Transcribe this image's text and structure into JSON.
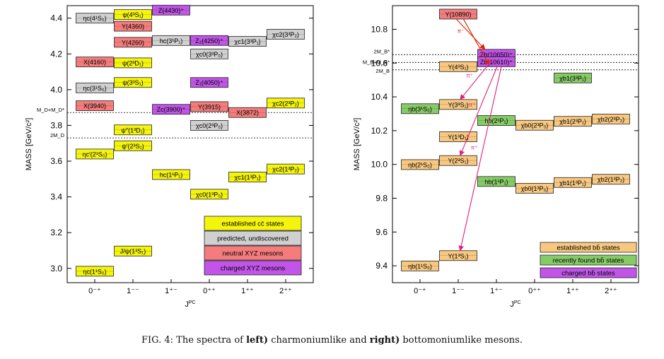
{
  "colors": {
    "established": "#f5f50c",
    "predicted": "#d0d0d0",
    "neutral": "#f47c7c",
    "charged": "#c055e8",
    "b_established": "#f8c880",
    "b_recent": "#86cc66",
    "b_charged": "#c055e8",
    "arrow_red": "#dd2200",
    "arrow_pink": "#e0207a"
  },
  "caption": {
    "prefix": "FIG. 4: The spectra of ",
    "bold1": "left)",
    "mid": " charmoniumlike and ",
    "bold2": "right)",
    "suffix": " bottomoniumlike mesons."
  },
  "chart_data": [
    {
      "type": "level-diagram",
      "ylabel": "MASS  [GeV/c²]",
      "xlabel": "J^PC",
      "ylim": [
        2.92,
        4.47
      ],
      "yticks": [
        3.0,
        3.2,
        3.4,
        3.6,
        3.8,
        4.0,
        4.2,
        4.4
      ],
      "tick_decimals": 1,
      "categories": [
        "0⁻⁺",
        "1⁻⁻",
        "1⁺⁻",
        "0⁺⁺",
        "1⁺⁺",
        "2⁺⁺"
      ],
      "thresholds": [
        {
          "label": "M_D+M_D*",
          "mass": 3.872
        },
        {
          "label": "2M_D",
          "mass": 3.73
        }
      ],
      "states": [
        {
          "label": "ηc(4¹S₀)",
          "col": 0,
          "mass": 4.4,
          "kind": "predicted"
        },
        {
          "label": "ψ(4³S₁)",
          "col": 1,
          "mass": 4.42,
          "kind": "established"
        },
        {
          "label": "Z(4430)⁺",
          "col": 2,
          "mass": 4.445,
          "kind": "charged"
        },
        {
          "label": "Y(4360)",
          "col": 1,
          "mass": 4.355,
          "kind": "neutral"
        },
        {
          "label": "Y(4260)",
          "col": 1,
          "mass": 4.265,
          "kind": "neutral"
        },
        {
          "label": "hc(3¹P₁)",
          "col": 2,
          "mass": 4.275,
          "kind": "predicted"
        },
        {
          "label": "Z₂(4250)⁺",
          "col": 3,
          "mass": 4.275,
          "kind": "charged"
        },
        {
          "label": "χc1(3³P₁)",
          "col": 4,
          "mass": 4.27,
          "kind": "predicted"
        },
        {
          "label": "χc2(3³P₂)",
          "col": 5,
          "mass": 4.31,
          "kind": "predicted"
        },
        {
          "label": "χc0(3³P₀)",
          "col": 3,
          "mass": 4.2,
          "kind": "predicted"
        },
        {
          "label": "X(4160)",
          "col": 0,
          "mass": 4.155,
          "kind": "neutral"
        },
        {
          "label": "ψ(2³D₁)",
          "col": 1,
          "mass": 4.15,
          "kind": "established"
        },
        {
          "label": "ηc(3¹S₀)",
          "col": 0,
          "mass": 4.01,
          "kind": "predicted"
        },
        {
          "label": "ψ(3³S₁)",
          "col": 1,
          "mass": 4.04,
          "kind": "established"
        },
        {
          "label": "Z₁(4050)⁺",
          "col": 3,
          "mass": 4.04,
          "kind": "charged"
        },
        {
          "label": "X(3940)",
          "col": 0,
          "mass": 3.91,
          "kind": "neutral"
        },
        {
          "label": "Zc(3900)⁺",
          "col": 2,
          "mass": 3.89,
          "kind": "charged"
        },
        {
          "label": "Y(3915)",
          "col": 3,
          "mass": 3.905,
          "kind": "neutral"
        },
        {
          "label": "X(3872)",
          "col": 4,
          "mass": 3.872,
          "kind": "neutral"
        },
        {
          "label": "χc2(2³P₂)",
          "col": 5,
          "mass": 3.925,
          "kind": "established"
        },
        {
          "label": "ψ′′(1³D₁)",
          "col": 1,
          "mass": 3.775,
          "kind": "established"
        },
        {
          "label": "χc0(2³P₀)",
          "col": 3,
          "mass": 3.8,
          "kind": "predicted"
        },
        {
          "label": "ψ′(2³S₁)",
          "col": 1,
          "mass": 3.686,
          "kind": "established"
        },
        {
          "label": "ηc′(2¹S₀)",
          "col": 0,
          "mass": 3.64,
          "kind": "established"
        },
        {
          "label": "hc(1¹P₁)",
          "col": 2,
          "mass": 3.525,
          "kind": "established"
        },
        {
          "label": "χc1(1³P₁)",
          "col": 4,
          "mass": 3.511,
          "kind": "established"
        },
        {
          "label": "χc2(1³P₂)",
          "col": 5,
          "mass": 3.556,
          "kind": "established"
        },
        {
          "label": "χc0(1³P₀)",
          "col": 3,
          "mass": 3.415,
          "kind": "established"
        },
        {
          "label": "J/ψ(1³S₁)",
          "col": 1,
          "mass": 3.097,
          "kind": "established"
        },
        {
          "label": "ηc(1¹S₀)",
          "col": 0,
          "mass": 2.984,
          "kind": "established"
        }
      ],
      "legend": [
        {
          "label": "established cc̄ states",
          "kind": "established"
        },
        {
          "label": "predicted, undiscovered",
          "kind": "predicted"
        },
        {
          "label": "neutral XYZ mesons",
          "kind": "neutral"
        },
        {
          "label": "charged XYZ mesons",
          "kind": "charged"
        }
      ]
    },
    {
      "type": "level-diagram",
      "ylabel": "MASS  [GeV/c²]",
      "xlabel": "J^PC",
      "ylim": [
        9.3,
        10.94
      ],
      "yticks": [
        9.4,
        9.6,
        9.8,
        10.0,
        10.2,
        10.4,
        10.6,
        10.8
      ],
      "tick_decimals": 1,
      "categories": [
        "0⁻⁺",
        "1⁻⁻",
        "1⁺⁻",
        "0⁺⁺",
        "1⁺⁺",
        "2⁺⁺"
      ],
      "thresholds": [
        {
          "label": "2M_B*",
          "mass": 10.65
        },
        {
          "label": "M_B+M_B*",
          "mass": 10.604
        },
        {
          "label": "2M_B",
          "mass": 10.56
        }
      ],
      "states": [
        {
          "label": "Υ(10890)",
          "col": 1,
          "mass": 10.89,
          "kind": "neutral"
        },
        {
          "label": "Zb(10650)⁺",
          "col": 2,
          "mass": 10.652,
          "kind": "charged"
        },
        {
          "label": "Zb(10610)⁺",
          "col": 2,
          "mass": 10.608,
          "kind": "charged"
        },
        {
          "label": "Υ(4³S₁)",
          "col": 1,
          "mass": 10.579,
          "kind": "b_established"
        },
        {
          "label": "χb1(3³P₁)",
          "col": 4,
          "mass": 10.512,
          "kind": "b_recent"
        },
        {
          "label": "Υ(3³S₁)",
          "col": 1,
          "mass": 10.355,
          "kind": "b_established"
        },
        {
          "label": "ηb(3¹S₀)",
          "col": 0,
          "mass": 10.33,
          "kind": "b_recent"
        },
        {
          "label": "hb(2¹P₁)",
          "col": 2,
          "mass": 10.26,
          "kind": "b_recent"
        },
        {
          "label": "χb0(2³P₀)",
          "col": 3,
          "mass": 10.232,
          "kind": "b_established"
        },
        {
          "label": "χb1(2³P₁)",
          "col": 4,
          "mass": 10.255,
          "kind": "b_established"
        },
        {
          "label": "χb2(2³P₂)",
          "col": 5,
          "mass": 10.269,
          "kind": "b_established"
        },
        {
          "label": "Υ(1³D₁)",
          "col": 1,
          "mass": 10.164,
          "kind": "b_established"
        },
        {
          "label": "Υ(2³S₁)",
          "col": 1,
          "mass": 10.023,
          "kind": "b_established"
        },
        {
          "label": "ηb(2¹S₀)",
          "col": 0,
          "mass": 9.999,
          "kind": "b_established"
        },
        {
          "label": "hb(1¹P₁)",
          "col": 2,
          "mass": 9.899,
          "kind": "b_recent"
        },
        {
          "label": "χb0(1³P₀)",
          "col": 3,
          "mass": 9.859,
          "kind": "b_established"
        },
        {
          "label": "χb1(1³P₁)",
          "col": 4,
          "mass": 9.893,
          "kind": "b_established"
        },
        {
          "label": "χb2(1³P₂)",
          "col": 5,
          "mass": 9.912,
          "kind": "b_established"
        },
        {
          "label": "Υ(1³S₁)",
          "col": 1,
          "mass": 9.46,
          "kind": "b_established"
        },
        {
          "label": "ηb(1¹S₀)",
          "col": 0,
          "mass": 9.399,
          "kind": "b_established"
        }
      ],
      "transitions": [
        {
          "from": "Υ(10890)",
          "to": "Zb(10650)⁺",
          "label": "π⁻",
          "color": "red"
        },
        {
          "from": "Υ(10890)",
          "to": "Zb(10610)⁺",
          "label": "",
          "color": "red"
        },
        {
          "from": "Zb(10650)⁺",
          "to": "Υ(3³S₁)",
          "label": "π⁺",
          "color": "pink"
        },
        {
          "from": "Zb(10610)⁺",
          "to": "Υ(2³S₁)",
          "label": "π⁺",
          "color": "pink"
        },
        {
          "from": "Zb(10610)⁺",
          "to": "Υ(1³S₁)",
          "label": "π⁺",
          "color": "pink"
        }
      ],
      "legend": [
        {
          "label": "established bb̄ states",
          "kind": "b_established"
        },
        {
          "label": "recently found bb̄ states",
          "kind": "b_recent"
        },
        {
          "label": "charged bb̄ states",
          "kind": "b_charged"
        }
      ]
    }
  ]
}
